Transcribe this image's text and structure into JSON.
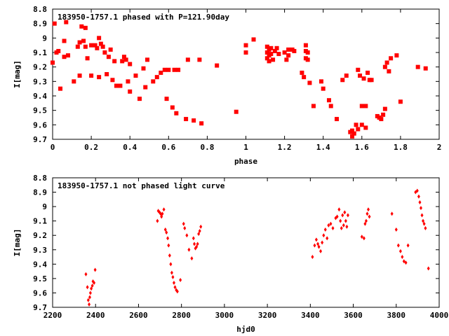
{
  "colors": {
    "point": "#ff0000",
    "axis": "#000000",
    "background": "#ffffff"
  },
  "chart_data": [
    {
      "type": "scatter",
      "title": "183950-1757.1 phased with P=121.90day",
      "xlabel": "phase",
      "ylabel": "I[mag]",
      "xlim": [
        0,
        2
      ],
      "ylim": [
        8.8,
        9.7
      ],
      "y_inverted": true,
      "xticks": [
        "0",
        "0.2",
        "0.4",
        "0.6",
        "0.8",
        "1",
        "1.2",
        "1.4",
        "1.6",
        "1.8",
        "2"
      ],
      "yticks": [
        "8.8",
        "8.9",
        "9",
        "9.1",
        "9.2",
        "9.3",
        "9.4",
        "9.5",
        "9.6",
        "9.7"
      ],
      "marker": "star",
      "series": [
        {
          "points": [
            [
              0.0,
              9.17
            ],
            [
              0.01,
              8.9
            ],
            [
              0.02,
              9.1
            ],
            [
              0.03,
              9.09
            ],
            [
              0.04,
              9.35
            ],
            [
              0.06,
              9.13
            ],
            [
              0.06,
              9.02
            ],
            [
              0.07,
              8.89
            ],
            [
              0.08,
              9.12
            ],
            [
              0.11,
              9.3
            ],
            [
              0.13,
              9.06
            ],
            [
              0.14,
              9.03
            ],
            [
              0.14,
              9.26
            ],
            [
              0.15,
              8.92
            ],
            [
              0.16,
              9.02
            ],
            [
              0.17,
              8.93
            ],
            [
              0.17,
              9.06
            ],
            [
              0.18,
              9.14
            ],
            [
              0.2,
              9.05
            ],
            [
              0.2,
              9.26
            ],
            [
              0.22,
              9.05
            ],
            [
              0.23,
              9.07
            ],
            [
              0.24,
              9.27
            ],
            [
              0.24,
              9.0
            ],
            [
              0.25,
              9.04
            ],
            [
              0.26,
              9.06
            ],
            [
              0.27,
              9.1
            ],
            [
              0.28,
              9.25
            ],
            [
              0.29,
              9.13
            ],
            [
              0.3,
              9.08
            ],
            [
              0.31,
              9.29
            ],
            [
              0.32,
              9.16
            ],
            [
              0.33,
              9.33
            ],
            [
              0.35,
              9.33
            ],
            [
              0.36,
              9.16
            ],
            [
              0.37,
              9.13
            ],
            [
              0.38,
              9.15
            ],
            [
              0.39,
              9.3
            ],
            [
              0.4,
              9.18
            ],
            [
              0.4,
              9.37
            ],
            [
              0.43,
              9.26
            ],
            [
              0.45,
              9.42
            ],
            [
              0.47,
              9.21
            ],
            [
              0.48,
              9.34
            ],
            [
              0.49,
              9.15
            ],
            [
              0.52,
              9.3
            ],
            [
              0.54,
              9.27
            ],
            [
              0.56,
              9.24
            ],
            [
              0.58,
              9.22
            ],
            [
              0.59,
              9.42
            ],
            [
              0.6,
              9.22
            ],
            [
              0.62,
              9.48
            ],
            [
              0.63,
              9.22
            ],
            [
              0.64,
              9.52
            ],
            [
              0.65,
              9.22
            ],
            [
              0.69,
              9.56
            ],
            [
              0.7,
              9.15
            ],
            [
              0.73,
              9.57
            ],
            [
              0.76,
              9.15
            ],
            [
              0.77,
              9.59
            ],
            [
              0.85,
              9.19
            ],
            [
              0.95,
              9.51
            ],
            [
              1.0,
              9.05
            ],
            [
              1.0,
              9.1
            ],
            [
              1.04,
              9.01
            ],
            [
              1.11,
              9.06
            ],
            [
              1.11,
              9.1
            ],
            [
              1.11,
              9.14
            ],
            [
              1.12,
              9.08
            ],
            [
              1.12,
              9.12
            ],
            [
              1.12,
              9.16
            ],
            [
              1.13,
              9.07
            ],
            [
              1.13,
              9.11
            ],
            [
              1.14,
              9.15
            ],
            [
              1.15,
              9.09
            ],
            [
              1.16,
              9.07
            ],
            [
              1.17,
              9.11
            ],
            [
              1.2,
              9.1
            ],
            [
              1.21,
              9.15
            ],
            [
              1.22,
              9.08
            ],
            [
              1.22,
              9.12
            ],
            [
              1.24,
              9.08
            ],
            [
              1.25,
              9.09
            ],
            [
              1.29,
              9.24
            ],
            [
              1.3,
              9.27
            ],
            [
              1.31,
              9.05
            ],
            [
              1.31,
              9.09
            ],
            [
              1.31,
              9.14
            ],
            [
              1.32,
              9.1
            ],
            [
              1.32,
              9.15
            ],
            [
              1.33,
              9.31
            ],
            [
              1.35,
              9.47
            ],
            [
              1.39,
              9.3
            ],
            [
              1.4,
              9.35
            ],
            [
              1.43,
              9.43
            ],
            [
              1.44,
              9.47
            ],
            [
              1.47,
              9.56
            ],
            [
              1.5,
              9.29
            ],
            [
              1.52,
              9.26
            ],
            [
              1.54,
              9.65
            ],
            [
              1.55,
              9.68
            ],
            [
              1.55,
              9.64
            ],
            [
              1.56,
              9.66
            ],
            [
              1.57,
              9.6
            ],
            [
              1.58,
              9.22
            ],
            [
              1.58,
              9.63
            ],
            [
              1.59,
              9.26
            ],
            [
              1.6,
              9.6
            ],
            [
              1.6,
              9.47
            ],
            [
              1.61,
              9.28
            ],
            [
              1.62,
              9.47
            ],
            [
              1.62,
              9.62
            ],
            [
              1.63,
              9.24
            ],
            [
              1.64,
              9.29
            ],
            [
              1.65,
              9.29
            ],
            [
              1.68,
              9.54
            ],
            [
              1.69,
              9.55
            ],
            [
              1.7,
              9.56
            ],
            [
              1.71,
              9.53
            ],
            [
              1.72,
              9.2
            ],
            [
              1.72,
              9.49
            ],
            [
              1.73,
              9.17
            ],
            [
              1.74,
              9.23
            ],
            [
              1.75,
              9.14
            ],
            [
              1.78,
              9.12
            ],
            [
              1.8,
              9.44
            ],
            [
              1.89,
              9.2
            ],
            [
              1.93,
              9.21
            ]
          ]
        }
      ]
    },
    {
      "type": "scatter",
      "title": "183950-1757.1 not phased light curve",
      "xlabel": "hjd0",
      "ylabel": "I[mag]",
      "xlim": [
        2200,
        4000
      ],
      "ylim": [
        8.8,
        9.7
      ],
      "y_inverted": true,
      "xticks": [
        "2200",
        "2400",
        "2600",
        "2800",
        "3000",
        "3200",
        "3400",
        "3600",
        "3800",
        "4000"
      ],
      "yticks": [
        "8.8",
        "8.9",
        "9",
        "9.1",
        "9.2",
        "9.3",
        "9.4",
        "9.5",
        "9.6",
        "9.7"
      ],
      "marker": "diamond",
      "series": [
        {
          "points": [
            [
              2355,
              9.47
            ],
            [
              2362,
              9.56
            ],
            [
              2366,
              9.65
            ],
            [
              2370,
              9.68
            ],
            [
              2373,
              9.63
            ],
            [
              2376,
              9.6
            ],
            [
              2380,
              9.57
            ],
            [
              2385,
              9.55
            ],
            [
              2388,
              9.52
            ],
            [
              2393,
              9.53
            ],
            [
              2398,
              9.44
            ],
            [
              2688,
              9.1
            ],
            [
              2692,
              9.03
            ],
            [
              2698,
              9.04
            ],
            [
              2703,
              9.05
            ],
            [
              2707,
              9.07
            ],
            [
              2711,
              9.05
            ],
            [
              2718,
              9.02
            ],
            [
              2725,
              9.16
            ],
            [
              2730,
              9.18
            ],
            [
              2736,
              9.22
            ],
            [
              2740,
              9.27
            ],
            [
              2745,
              9.34
            ],
            [
              2750,
              9.4
            ],
            [
              2755,
              9.46
            ],
            [
              2760,
              9.49
            ],
            [
              2765,
              9.53
            ],
            [
              2770,
              9.56
            ],
            [
              2776,
              9.58
            ],
            [
              2781,
              9.59
            ],
            [
              2795,
              9.51
            ],
            [
              2810,
              9.12
            ],
            [
              2815,
              9.15
            ],
            [
              2825,
              9.2
            ],
            [
              2835,
              9.3
            ],
            [
              2848,
              9.36
            ],
            [
              2856,
              9.22
            ],
            [
              2860,
              9.26
            ],
            [
              2865,
              9.29
            ],
            [
              2870,
              9.28
            ],
            [
              2875,
              9.26
            ],
            [
              2880,
              9.19
            ],
            [
              2885,
              9.17
            ],
            [
              2890,
              9.14
            ],
            [
              3410,
              9.35
            ],
            [
              3420,
              9.27
            ],
            [
              3428,
              9.23
            ],
            [
              3435,
              9.26
            ],
            [
              3440,
              9.28
            ],
            [
              3448,
              9.31
            ],
            [
              3455,
              9.25
            ],
            [
              3462,
              9.2
            ],
            [
              3470,
              9.16
            ],
            [
              3478,
              9.22
            ],
            [
              3485,
              9.13
            ],
            [
              3495,
              9.12
            ],
            [
              3505,
              9.15
            ],
            [
              3518,
              9.08
            ],
            [
              3525,
              9.07
            ],
            [
              3534,
              9.02
            ],
            [
              3540,
              9.1
            ],
            [
              3545,
              9.15
            ],
            [
              3550,
              9.06
            ],
            [
              3555,
              9.13
            ],
            [
              3560,
              9.04
            ],
            [
              3565,
              9.1
            ],
            [
              3570,
              9.14
            ],
            [
              3575,
              9.06
            ],
            [
              3640,
              9.21
            ],
            [
              3650,
              9.22
            ],
            [
              3655,
              9.12
            ],
            [
              3660,
              9.1
            ],
            [
              3665,
              9.05
            ],
            [
              3670,
              9.02
            ],
            [
              3675,
              9.07
            ],
            [
              3780,
              9.05
            ],
            [
              3800,
              9.16
            ],
            [
              3810,
              9.27
            ],
            [
              3820,
              9.31
            ],
            [
              3828,
              9.35
            ],
            [
              3836,
              9.38
            ],
            [
              3845,
              9.39
            ],
            [
              3855,
              9.27
            ],
            [
              3890,
              8.9
            ],
            [
              3898,
              8.89
            ],
            [
              3905,
              8.93
            ],
            [
              3910,
              8.97
            ],
            [
              3915,
              9.01
            ],
            [
              3920,
              9.06
            ],
            [
              3925,
              9.1
            ],
            [
              3930,
              9.12
            ],
            [
              3936,
              9.15
            ],
            [
              3950,
              9.43
            ]
          ]
        }
      ]
    }
  ]
}
